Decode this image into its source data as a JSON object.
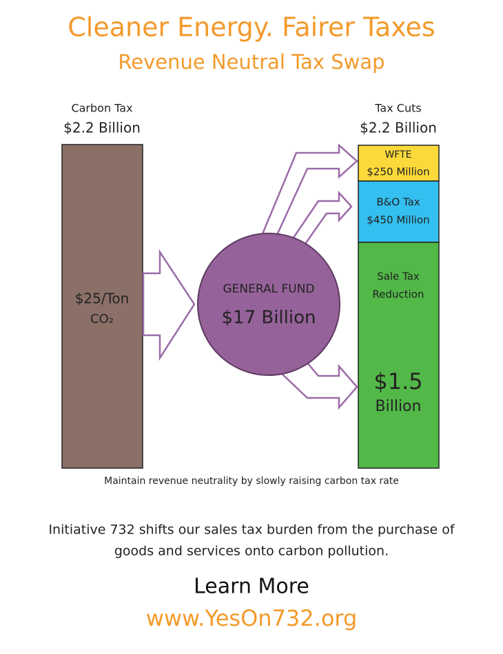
{
  "header": {
    "title": "Cleaner Energy. Fairer Taxes",
    "subtitle": "Revenue Neutral Tax Swap"
  },
  "source": {
    "label": "Carbon Tax",
    "amount": "$2.2 Billion",
    "rate": "$25/Ton",
    "unit": "CO₂"
  },
  "fund": {
    "label": "GENERAL FUND",
    "amount": "$17 Billion"
  },
  "uses": {
    "label": "Tax Cuts",
    "amount": "$2.2 Billion",
    "segments": [
      {
        "name": "WFTE",
        "amount": "$250 Million"
      },
      {
        "name": "B&O Tax",
        "amount": "$450 Million"
      },
      {
        "name": "Sale Tax",
        "name2": "Reduction",
        "amount": "$1.5",
        "amount2": "Billion"
      }
    ]
  },
  "note": "Maintain revenue neutrality by slowly raising carbon tax rate",
  "description": [
    "Initiative 732 shifts our sales tax burden from the purchase of",
    "goods and services onto carbon pollution."
  ],
  "cta": {
    "label": "Learn More",
    "url": "www.YesOn732.org"
  }
}
